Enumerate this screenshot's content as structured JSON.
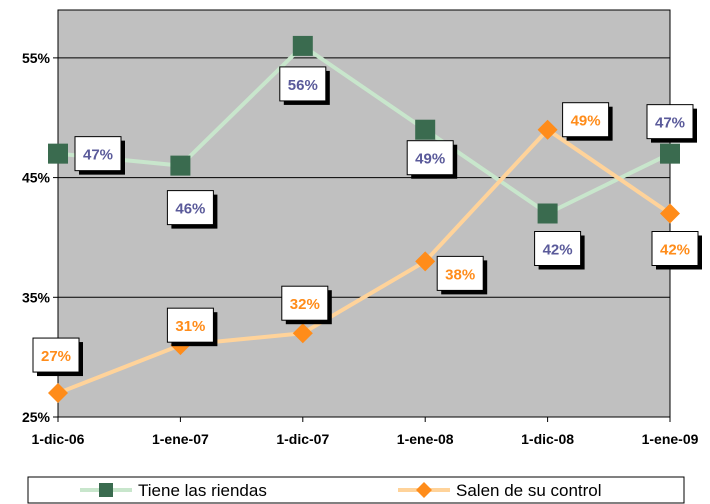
{
  "chart_data": {
    "type": "line",
    "categories": [
      "1-dic-06",
      "1-ene-07",
      "1-dic-07",
      "1-ene-08",
      "1-dic-08",
      "1-ene-09"
    ],
    "ylim": [
      25,
      59
    ],
    "yticks": [
      25,
      35,
      45,
      55
    ],
    "ytick_labels": [
      "25%",
      "35%",
      "45%",
      "55%"
    ],
    "grid": true,
    "legend_position": "bottom",
    "plot_background": "#c0c0c0",
    "series": [
      {
        "name": "Tiene las riendas",
        "values": [
          47,
          46,
          56,
          49,
          42,
          47
        ],
        "labels": [
          "47%",
          "46%",
          "56%",
          "49%",
          "42%",
          "47%"
        ],
        "line_color": "#c8e6cc",
        "marker": "square",
        "marker_color": "#3a6b4f",
        "label_color": "#5a5a9a"
      },
      {
        "name": "Salen de su control",
        "values": [
          27,
          31,
          32,
          38,
          49,
          42
        ],
        "labels": [
          "27%",
          "31%",
          "32%",
          "38%",
          "49%",
          "42%"
        ],
        "line_color": "#ffd39a",
        "marker": "diamond",
        "marker_color": "#ff8c1a",
        "label_color": "#ff8c1a"
      }
    ]
  }
}
